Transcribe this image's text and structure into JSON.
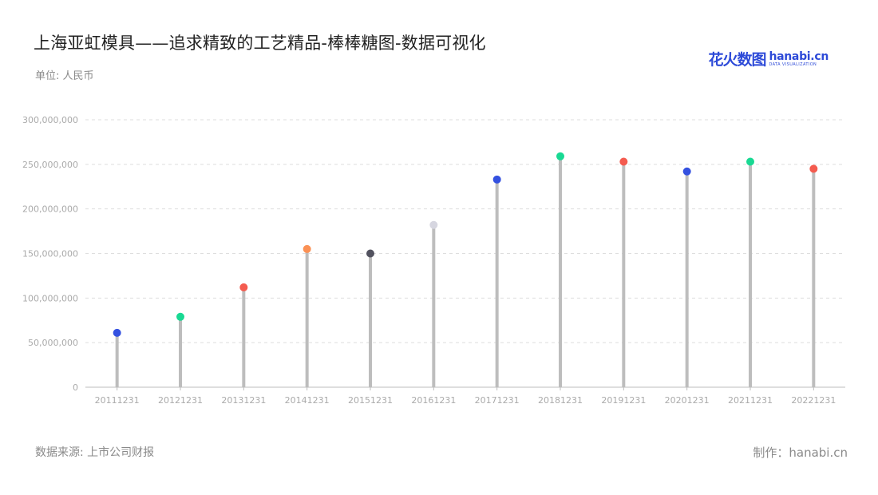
{
  "header": {
    "title": "上海亚虹模具——追求精致的工艺精品-棒棒糖图-数据可视化",
    "unit": "单位: 人民币"
  },
  "logo": {
    "cn_text": "花火数图",
    "en_text": "hanabi.cn",
    "sub_text": "DATA VISUALIZATION"
  },
  "footer": {
    "source": "数据来源: 上市公司财报",
    "credit": "制作：hanabi.cn"
  },
  "chart_data": {
    "type": "lollipop",
    "title": "上海亚虹模具——追求精致的工艺精品-棒棒糖图-数据可视化",
    "ylabel": "单位: 人民币",
    "xlabel": "",
    "categories": [
      "20111231",
      "20121231",
      "20131231",
      "20141231",
      "20151231",
      "20161231",
      "20171231",
      "20181231",
      "20191231",
      "20201231",
      "20211231",
      "20221231"
    ],
    "values": [
      61000000,
      79000000,
      112000000,
      155000000,
      150000000,
      182000000,
      233000000,
      259000000,
      253000000,
      242000000,
      253000000,
      245000000
    ],
    "dot_colors": [
      "#3451e0",
      "#19d993",
      "#f45b4f",
      "#fb9155",
      "#52525f",
      "#d6d6e0",
      "#3451e0",
      "#19d993",
      "#f45b4f",
      "#3451e0",
      "#19d993",
      "#f45b4f"
    ],
    "stem_color": "#bdbdbd",
    "ylim": [
      0,
      300000000
    ],
    "yticks": [
      0,
      50000000,
      100000000,
      150000000,
      200000000,
      250000000,
      300000000
    ],
    "ytick_labels": [
      "0",
      "50,000,000",
      "100,000,000",
      "150,000,000",
      "200,000,000",
      "250,000,000",
      "300,000,000"
    ],
    "grid": true,
    "legend": "none"
  }
}
